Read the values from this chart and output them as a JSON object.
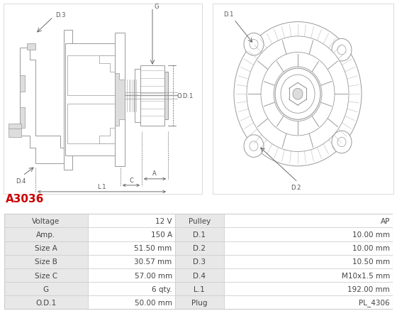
{
  "title": "A3036",
  "title_color": "#cc0000",
  "table_data": {
    "left_col1": [
      "Voltage",
      "Amp.",
      "Size A",
      "Size B",
      "Size C",
      "G",
      "O.D.1"
    ],
    "left_col2": [
      "12 V",
      "150 A",
      "51.50 mm",
      "30.57 mm",
      "57.00 mm",
      "6 qty.",
      "50.00 mm"
    ],
    "right_col1": [
      "Pulley",
      "D.1",
      "D.2",
      "D.3",
      "D.4",
      "L.1",
      "Plug"
    ],
    "right_col2": [
      "AP",
      "10.00 mm",
      "10.00 mm",
      "10.50 mm",
      "M10x1.5 mm",
      "192.00 mm",
      "PL_4306"
    ]
  },
  "border_color": "#cccccc",
  "text_color": "#444444",
  "bg_color": "#ffffff",
  "lbl_bg": "#e8e8e8",
  "val_bg": "#ffffff",
  "font_size": 7.5,
  "gray": "#999999",
  "lgray": "#bbbbbb",
  "llgray": "#dddddd",
  "ann_color": "#555555",
  "ann_fs": 6.0
}
